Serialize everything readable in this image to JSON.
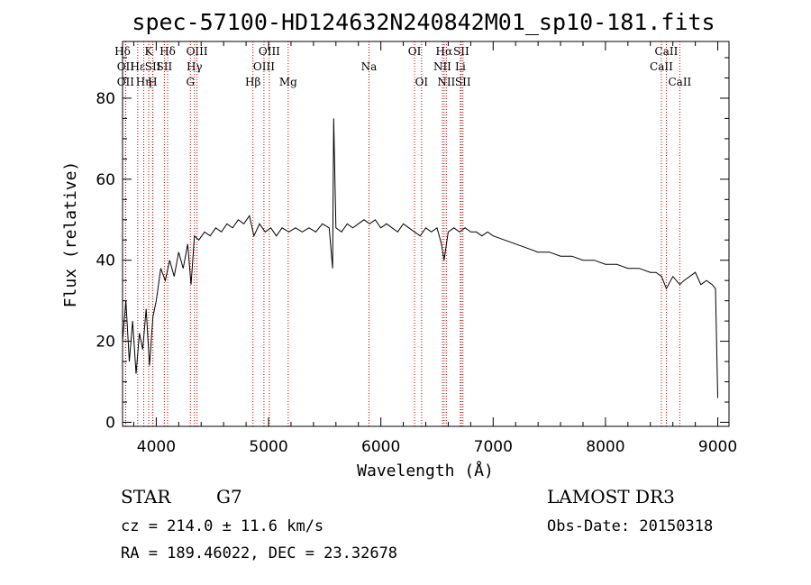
{
  "chart_data": {
    "type": "line",
    "title": "spec-57100-HD124632N240842M01_sp10-181.fits",
    "xlabel": "Wavelength (Å)",
    "ylabel": "Flux (relative)",
    "xlim": [
      3700,
      9100
    ],
    "ylim": [
      -1,
      94
    ],
    "xticks": [
      4000,
      5000,
      6000,
      7000,
      8000,
      9000
    ],
    "yticks": [
      0,
      20,
      40,
      60,
      80
    ],
    "grid": false,
    "series": [
      {
        "name": "flux",
        "x": [
          3700,
          3730,
          3760,
          3790,
          3820,
          3850,
          3880,
          3910,
          3940,
          3970,
          4000,
          4040,
          4080,
          4120,
          4160,
          4200,
          4240,
          4280,
          4310,
          4340,
          4380,
          4430,
          4480,
          4530,
          4580,
          4630,
          4680,
          4730,
          4780,
          4830,
          4870,
          4920,
          4970,
          5020,
          5070,
          5120,
          5180,
          5240,
          5300,
          5360,
          5420,
          5480,
          5540,
          5570,
          5580,
          5600,
          5650,
          5700,
          5750,
          5800,
          5850,
          5900,
          5950,
          6000,
          6050,
          6100,
          6150,
          6200,
          6250,
          6300,
          6350,
          6400,
          6450,
          6500,
          6540,
          6563,
          6600,
          6650,
          6700,
          6750,
          6800,
          6850,
          6900,
          6950,
          7000,
          7100,
          7200,
          7300,
          7400,
          7500,
          7600,
          7700,
          7800,
          7900,
          8000,
          8100,
          8200,
          8300,
          8400,
          8450,
          8500,
          8542,
          8600,
          8662,
          8700,
          8750,
          8800,
          8850,
          8900,
          8950,
          8980,
          9000
        ],
        "y": [
          20,
          30,
          15,
          25,
          12,
          22,
          18,
          28,
          14,
          26,
          30,
          38,
          35,
          40,
          36,
          42,
          38,
          44,
          34,
          46,
          45,
          47,
          46,
          48,
          47,
          49,
          48,
          50,
          49,
          51,
          46,
          49,
          47,
          48,
          46,
          48,
          47,
          48,
          47,
          48,
          47,
          49,
          48,
          38,
          75,
          48,
          47,
          49,
          48,
          49,
          50,
          49,
          50,
          48,
          49,
          48,
          47,
          49,
          48,
          47,
          46,
          48,
          47,
          48,
          44,
          40,
          47,
          48,
          47,
          48,
          47,
          47,
          46,
          47,
          46,
          45,
          44,
          43,
          42,
          42,
          41,
          41,
          40,
          40,
          39,
          39,
          38,
          38,
          37,
          37,
          36,
          33,
          36,
          34,
          35,
          36,
          37,
          34,
          35,
          34,
          33,
          6
        ]
      }
    ],
    "spectral_lines": [
      {
        "label": "Hδ",
        "wavelength": 3700,
        "row": 1
      },
      {
        "label": "OII",
        "wavelength": 3727,
        "row": 2
      },
      {
        "label": "OII",
        "wavelength": 3727,
        "row": 3
      },
      {
        "label": "Hε",
        "wavelength": 3835,
        "row": 2
      },
      {
        "label": "Hη",
        "wavelength": 3889,
        "row": 3
      },
      {
        "label": "K",
        "wavelength": 3933,
        "row": 1
      },
      {
        "label": "SII",
        "wavelength": 3970,
        "row": 2
      },
      {
        "label": "H",
        "wavelength": 3968,
        "row": 3
      },
      {
        "label": "Hδ",
        "wavelength": 4101,
        "row": 1
      },
      {
        "label": "SII",
        "wavelength": 4072,
        "row": 2
      },
      {
        "label": "OIII",
        "wavelength": 4363,
        "row": 1
      },
      {
        "label": "Hγ",
        "wavelength": 4340,
        "row": 2
      },
      {
        "label": "G",
        "wavelength": 4304,
        "row": 3
      },
      {
        "label": "Hβ",
        "wavelength": 4861,
        "row": 3
      },
      {
        "label": "OIII",
        "wavelength": 5007,
        "row": 1
      },
      {
        "label": "OIII",
        "wavelength": 4959,
        "row": 2
      },
      {
        "label": "Mg",
        "wavelength": 5175,
        "row": 3
      },
      {
        "label": "Na",
        "wavelength": 5894,
        "row": 2
      },
      {
        "label": "OI",
        "wavelength": 6300,
        "row": 1
      },
      {
        "label": "OI",
        "wavelength": 6363,
        "row": 3
      },
      {
        "label": "Hα",
        "wavelength": 6563,
        "row": 1
      },
      {
        "label": "SII",
        "wavelength": 6716,
        "row": 1
      },
      {
        "label": "NII",
        "wavelength": 6548,
        "row": 2
      },
      {
        "label": "Li",
        "wavelength": 6708,
        "row": 2
      },
      {
        "label": "NII",
        "wavelength": 6583,
        "row": 3
      },
      {
        "label": "SII",
        "wavelength": 6731,
        "row": 3
      },
      {
        "label": "CaII",
        "wavelength": 8542,
        "row": 1
      },
      {
        "label": "CaII",
        "wavelength": 8498,
        "row": 2
      },
      {
        "label": "CaII",
        "wavelength": 8662,
        "row": 3
      }
    ]
  },
  "info": {
    "class": "STAR",
    "subclass": "G7",
    "survey": "LAMOST DR3",
    "redshift": "cz = 214.0 ± 11.6 km/s",
    "obs_date": "Obs-Date: 20150318",
    "coords": "RA = 189.46022, DEC =  23.32678"
  }
}
